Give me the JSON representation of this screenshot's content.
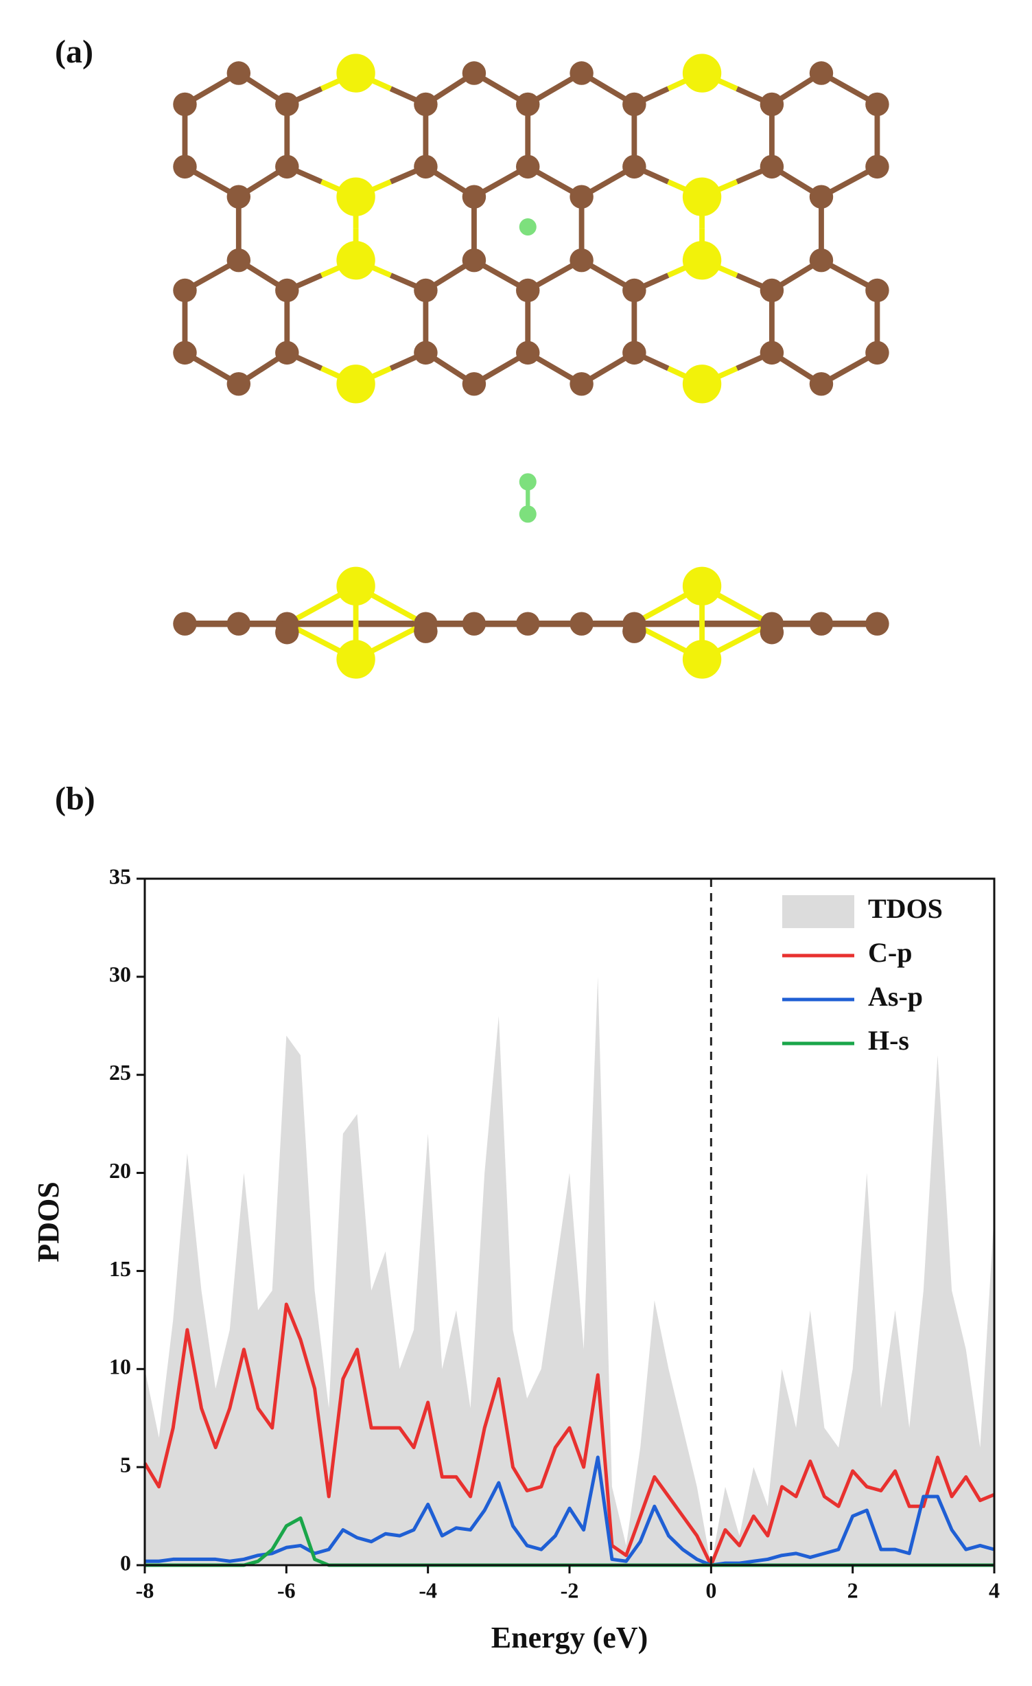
{
  "panel_labels": [
    "(a)",
    "(b)"
  ],
  "chart_data": {
    "type": "line",
    "xlabel": "Energy (eV)",
    "ylabel": "PDOS",
    "x": [
      -8,
      -7.8,
      -7.6,
      -7.4,
      -7.2,
      -7.0,
      -6.8,
      -6.6,
      -6.4,
      -6.2,
      -6.0,
      -5.8,
      -5.6,
      -5.4,
      -5.2,
      -5.0,
      -4.8,
      -4.6,
      -4.4,
      -4.2,
      -4.0,
      -3.8,
      -3.6,
      -3.4,
      -3.2,
      -3.0,
      -2.8,
      -2.6,
      -2.4,
      -2.2,
      -2.0,
      -1.8,
      -1.6,
      -1.4,
      -1.2,
      -1.0,
      -0.8,
      -0.6,
      -0.4,
      -0.2,
      0,
      0.2,
      0.4,
      0.6,
      0.8,
      1.0,
      1.2,
      1.4,
      1.6,
      1.8,
      2.0,
      2.2,
      2.4,
      2.6,
      2.8,
      3.0,
      3.2,
      3.4,
      3.6,
      3.8,
      4.0
    ],
    "series": [
      {
        "name": "TDOS",
        "color": "#dcdcdc",
        "style": "area",
        "values": [
          10,
          6.5,
          12.5,
          21,
          14,
          9,
          12,
          20,
          13,
          14,
          27,
          26,
          14,
          8,
          22,
          23,
          14,
          16,
          10,
          12,
          22,
          10,
          13,
          8,
          20,
          28,
          12,
          8.5,
          10,
          15,
          20,
          11,
          30,
          4,
          1,
          6,
          13.5,
          10,
          7,
          4,
          0,
          4,
          1.5,
          5,
          3,
          10,
          7,
          13,
          7,
          6,
          10,
          20,
          8,
          13,
          7,
          14,
          26,
          14,
          11,
          6,
          18
        ]
      },
      {
        "name": "C-p",
        "color": "#e8312f",
        "values": [
          5.2,
          4,
          7,
          12,
          8,
          6,
          8,
          11,
          8,
          7,
          13.3,
          11.5,
          9,
          3.5,
          9.5,
          11,
          7,
          7,
          7,
          6,
          8.3,
          4.5,
          4.5,
          3.5,
          7,
          9.5,
          5,
          3.8,
          4,
          6,
          7,
          5,
          9.7,
          1,
          0.5,
          2.5,
          4.5,
          3.5,
          2.5,
          1.5,
          0,
          1.8,
          1,
          2.5,
          1.5,
          4,
          3.5,
          5.3,
          3.5,
          3,
          4.8,
          4,
          3.8,
          4.8,
          3,
          3,
          5.5,
          3.5,
          4.5,
          3.3,
          3.6
        ]
      },
      {
        "name": "As-p",
        "color": "#1f5fd4",
        "values": [
          0.2,
          0.2,
          0.3,
          0.3,
          0.3,
          0.3,
          0.2,
          0.3,
          0.5,
          0.6,
          0.9,
          1,
          0.6,
          0.8,
          1.8,
          1.4,
          1.2,
          1.6,
          1.5,
          1.8,
          3.1,
          1.5,
          1.9,
          1.8,
          2.8,
          4.2,
          2,
          1,
          0.8,
          1.5,
          2.9,
          1.8,
          5.5,
          0.3,
          0.2,
          1.2,
          3,
          1.5,
          0.8,
          0.3,
          0,
          0.1,
          0.1,
          0.2,
          0.3,
          0.5,
          0.6,
          0.4,
          0.6,
          0.8,
          2.5,
          2.8,
          0.8,
          0.8,
          0.6,
          3.5,
          3.5,
          1.8,
          0.8,
          1,
          0.8
        ]
      },
      {
        "name": "H-s",
        "color": "#1aa64a",
        "values": [
          0,
          0,
          0,
          0,
          0,
          0,
          0,
          0,
          0.2,
          0.8,
          2,
          2.4,
          0.3,
          0,
          0,
          0,
          0,
          0,
          0,
          0,
          0,
          0,
          0,
          0,
          0,
          0,
          0,
          0,
          0,
          0,
          0,
          0,
          0,
          0,
          0,
          0,
          0,
          0,
          0,
          0,
          0,
          0,
          0,
          0,
          0,
          0,
          0,
          0,
          0,
          0,
          0,
          0,
          0,
          0,
          0,
          0,
          0,
          0,
          0,
          0,
          0
        ]
      }
    ],
    "xlim": [
      -8,
      4
    ],
    "xticks": [
      -8,
      -6,
      -4,
      -2,
      0,
      2,
      4
    ],
    "ylim": [
      0,
      35
    ],
    "yticks": [
      0,
      5,
      10,
      15,
      20,
      25,
      30,
      35
    ],
    "vlines": [
      0
    ],
    "legend": "upper right"
  }
}
